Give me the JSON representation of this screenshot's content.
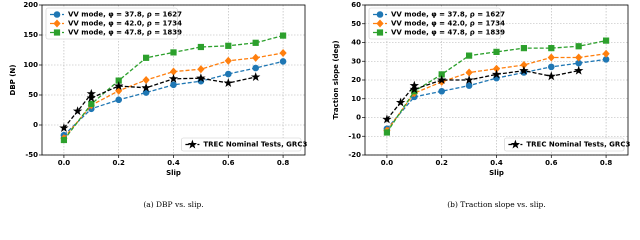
{
  "chart_data": [
    {
      "type": "line",
      "x_label": "Slip",
      "y_label": "DBP (N)",
      "caption": "(a) DBP vs. slip.",
      "xlim": [
        -0.08,
        0.88
      ],
      "xticks": [
        {
          "value": 0,
          "label": "0.0"
        },
        {
          "value": 0.2,
          "label": "0.2"
        },
        {
          "value": 0.4,
          "label": "0.4"
        },
        {
          "value": 0.6,
          "label": "0.6"
        },
        {
          "value": 0.8,
          "label": "0.8"
        }
      ],
      "ylim": [
        -50,
        200
      ],
      "yticks": [
        -50,
        0,
        50,
        100,
        150,
        200
      ],
      "grid": true,
      "series": [
        {
          "name": "VV mode, φ = 37.8, ρ = 1627",
          "color": "#1f77b4",
          "marker": "circle",
          "linestyle": "dashed",
          "legend_loc": "upper left",
          "x": [
            0,
            0.1,
            0.2,
            0.3,
            0.4,
            0.5,
            0.6,
            0.7,
            0.8
          ],
          "values": [
            -17,
            27,
            42,
            54,
            67,
            73,
            85,
            95,
            106
          ]
        },
        {
          "name": "VV mode, φ = 42.0, ρ = 1734",
          "color": "#ff7f0e",
          "marker": "diamond",
          "linestyle": "dashed",
          "legend_loc": "upper left",
          "x": [
            0,
            0.1,
            0.2,
            0.3,
            0.4,
            0.5,
            0.6,
            0.7,
            0.8
          ],
          "values": [
            -22,
            33,
            57,
            75,
            89,
            93,
            107,
            112,
            120
          ]
        },
        {
          "name": "VV mode, φ = 47.8, ρ = 1839",
          "color": "#2ca02c",
          "marker": "square",
          "linestyle": "dashed",
          "legend_loc": "upper left",
          "x": [
            0,
            0.1,
            0.2,
            0.3,
            0.4,
            0.5,
            0.6,
            0.7,
            0.8
          ],
          "values": [
            -25,
            35,
            74,
            112,
            121,
            130,
            132,
            137,
            149
          ]
        },
        {
          "name": "TREC Nominal Tests, GRC3",
          "color": "#000000",
          "marker": "star",
          "linestyle": "dashed",
          "legend_loc": "lower right",
          "x": [
            0,
            0.05,
            0.1,
            0.1,
            0.2,
            0.3,
            0.4,
            0.5,
            0.6,
            0.7
          ],
          "values": [
            -5,
            23,
            52,
            45,
            65,
            62,
            77,
            78,
            70,
            80
          ]
        }
      ]
    },
    {
      "type": "line",
      "x_label": "Slip",
      "y_label": "Traction slope (deg)",
      "caption": "(b) Traction slope vs. slip.",
      "xlim": [
        -0.08,
        0.88
      ],
      "xticks": [
        {
          "value": 0,
          "label": "0.0"
        },
        {
          "value": 0.2,
          "label": "0.2"
        },
        {
          "value": 0.4,
          "label": "0.4"
        },
        {
          "value": 0.6,
          "label": "0.6"
        },
        {
          "value": 0.8,
          "label": "0.8"
        }
      ],
      "ylim": [
        -20,
        60
      ],
      "yticks": [
        -20,
        -10,
        0,
        10,
        20,
        30,
        40,
        50,
        60
      ],
      "grid": true,
      "series": [
        {
          "name": "VV mode, φ = 37.8, ρ = 1627",
          "color": "#1f77b4",
          "marker": "circle",
          "linestyle": "dashed",
          "legend_loc": "upper left",
          "x": [
            0,
            0.1,
            0.2,
            0.3,
            0.4,
            0.5,
            0.6,
            0.7,
            0.8
          ],
          "values": [
            -6,
            11,
            14,
            17,
            21,
            24,
            27,
            29,
            31
          ]
        },
        {
          "name": "VV mode, φ = 42.0, ρ = 1734",
          "color": "#ff7f0e",
          "marker": "diamond",
          "linestyle": "dashed",
          "legend_loc": "upper left",
          "x": [
            0,
            0.1,
            0.2,
            0.3,
            0.4,
            0.5,
            0.6,
            0.7,
            0.8
          ],
          "values": [
            -7,
            13,
            19,
            24,
            26,
            28,
            32,
            32,
            34
          ]
        },
        {
          "name": "VV mode, φ = 47.8, ρ = 1839",
          "color": "#2ca02c",
          "marker": "square",
          "linestyle": "dashed",
          "legend_loc": "upper left",
          "x": [
            0,
            0.1,
            0.2,
            0.3,
            0.4,
            0.5,
            0.6,
            0.7,
            0.8
          ],
          "values": [
            -8,
            14,
            23,
            33,
            35,
            37,
            37,
            38,
            41
          ]
        },
        {
          "name": "TREC Nominal Tests, GRC3",
          "color": "#000000",
          "marker": "star",
          "linestyle": "dashed",
          "legend_loc": "lower right",
          "x": [
            0,
            0.05,
            0.1,
            0.1,
            0.2,
            0.3,
            0.4,
            0.5,
            0.6,
            0.7
          ],
          "values": [
            -1,
            8,
            17,
            15,
            20,
            20,
            23,
            25,
            22,
            25
          ]
        }
      ]
    }
  ]
}
